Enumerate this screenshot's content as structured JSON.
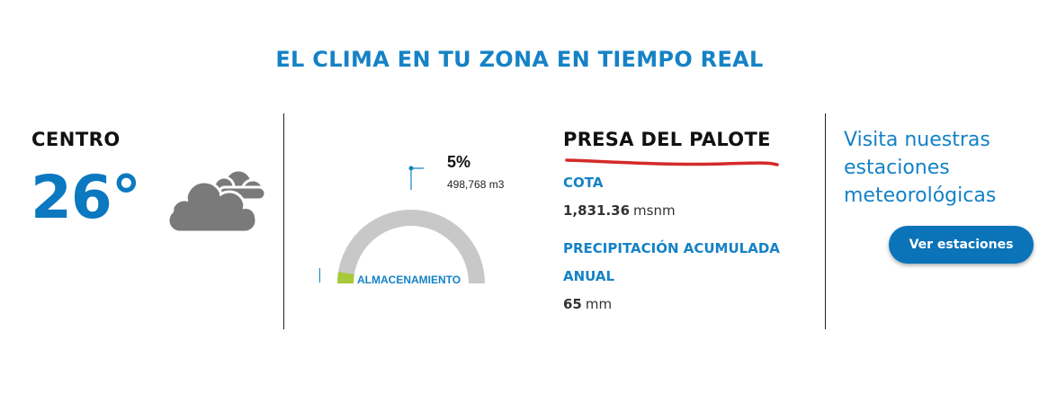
{
  "header": {
    "title": "EL CLIMA EN TU ZONA EN TIEMPO REAL"
  },
  "city": {
    "name": "CENTRO",
    "temperature": "26°",
    "weather_icon": "cloudy-icon"
  },
  "storage": {
    "percent_label": "5%",
    "percent_value": 5,
    "volume": "498,768 m3",
    "label": "ALMACENAMIENTO",
    "colors": {
      "track": "#c8c8c8",
      "fill": "#a6c93a",
      "marker": "#1582c5"
    }
  },
  "dam": {
    "title": "PRESA DEL PALOTE",
    "cota": {
      "label": "COTA",
      "value": "1,831.36",
      "unit": "msnm"
    },
    "precipitation": {
      "label_line1": "PRECIPITACIÓN ACUMULADA",
      "label_line2": "ANUAL",
      "value": "65",
      "unit": "mm"
    }
  },
  "stations": {
    "text": "Visita nuestras estaciones meteorológicas",
    "button_label": "Ver estaciones"
  },
  "colors": {
    "accent": "#1582c5",
    "underline": "#d42a2a"
  }
}
